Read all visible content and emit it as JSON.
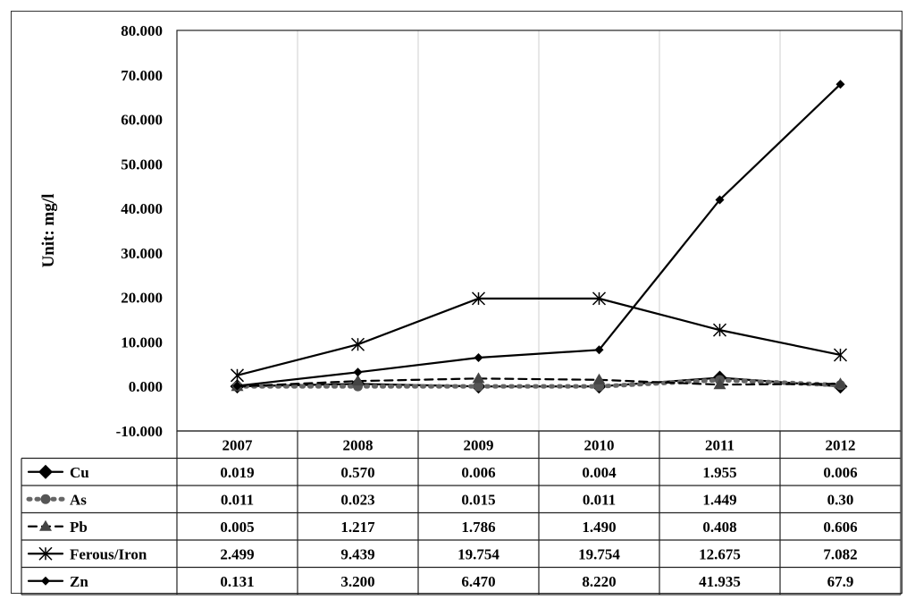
{
  "chart_data": {
    "type": "line",
    "ylabel": "Unit: mg/l",
    "ylim": [
      -10,
      80
    ],
    "ytick_step": 10,
    "ytick_labels": [
      "-10.000",
      "0.000",
      "10.000",
      "20.000",
      "30.000",
      "40.000",
      "50.000",
      "60.000",
      "70.000",
      "80.000"
    ],
    "categories": [
      "2007",
      "2008",
      "2009",
      "2010",
      "2011",
      "2012"
    ],
    "grid": "vertical",
    "data_table": true,
    "series": [
      {
        "name": "Cu",
        "marker": "diamond",
        "line": "solid",
        "color": "#000000",
        "values": [
          0.019,
          0.57,
          0.006,
          0.004,
          1.955,
          0.006
        ],
        "labels": [
          "0.019",
          "0.570",
          "0.006",
          "0.004",
          "1.955",
          "0.006"
        ]
      },
      {
        "name": "As",
        "marker": "dot",
        "line": "dotted",
        "color": "#666666",
        "values": [
          0.011,
          0.023,
          0.015,
          0.011,
          1.449,
          0.3
        ],
        "labels": [
          "0.011",
          "0.023",
          "0.015",
          "0.011",
          "1.449",
          "0.30"
        ]
      },
      {
        "name": "Pb",
        "marker": "triangle",
        "line": "dashed",
        "color": "#000000",
        "values": [
          0.005,
          1.217,
          1.786,
          1.49,
          0.408,
          0.606
        ],
        "labels": [
          "0.005",
          "1.217",
          "1.786",
          "1.490",
          "0.408",
          "0.606"
        ]
      },
      {
        "name": "Ferous/Iron",
        "marker": "star",
        "line": "solid",
        "color": "#000000",
        "values": [
          2.499,
          9.439,
          19.754,
          19.754,
          12.675,
          7.082
        ],
        "labels": [
          "2.499",
          "9.439",
          "19.754",
          "19.754",
          "12.675",
          "7.082"
        ]
      },
      {
        "name": "Zn",
        "marker": "small-diamond",
        "line": "solid",
        "color": "#000000",
        "values": [
          0.131,
          3.2,
          6.47,
          8.22,
          41.935,
          67.9
        ],
        "labels": [
          "0.131",
          "3.200",
          "6.470",
          "8.220",
          "41.935",
          "67.9"
        ]
      }
    ]
  }
}
